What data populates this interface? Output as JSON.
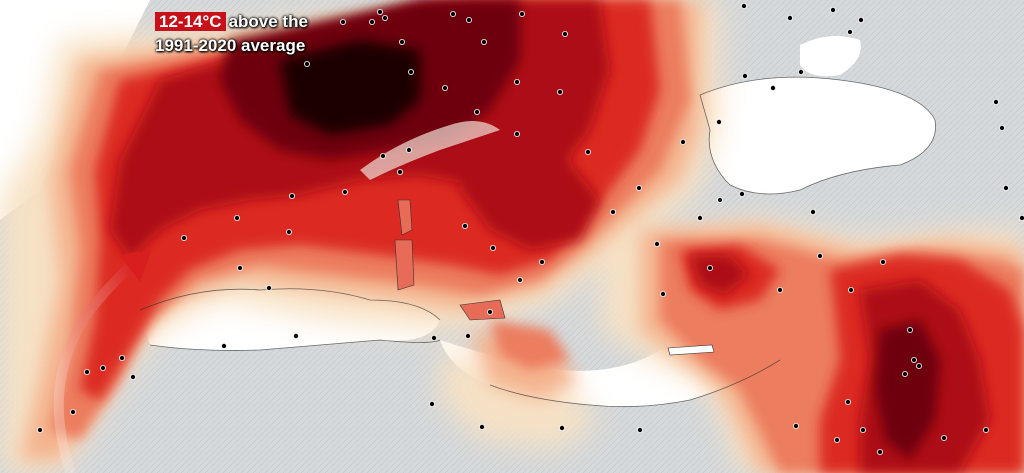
{
  "legend": {
    "highlight": "12-14°C",
    "line1_rest": "above the",
    "line2": "1991-2020 average"
  },
  "colors": {
    "sea": "#ffffff",
    "land_base": "#d3d6d8",
    "anomaly_light": "#f8e2c4",
    "anomaly_peach": "#f4b48e",
    "anomaly_salmon": "#ec7d5f",
    "anomaly_red": "#dc2b24",
    "anomaly_darkred": "#ad0f14",
    "anomaly_maroon": "#6e0507",
    "anomaly_black": "#1e0000",
    "arrow": "#d81e1e",
    "city_dot": "#000000"
  },
  "cities_count_note": "",
  "icons": [
    "city-marker-icon",
    "warm-air-arrow-icon"
  ]
}
